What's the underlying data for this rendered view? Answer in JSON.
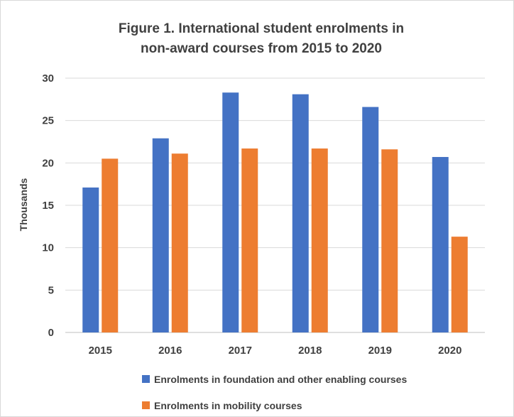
{
  "chart_data": {
    "type": "bar",
    "title_lines": [
      "Figure 1. International student enrolments in",
      "non-award courses from 2015 to 2020"
    ],
    "ylabel": "Thousands",
    "xlabel": "",
    "ylim": [
      0,
      30
    ],
    "yticks": [
      "0",
      "5",
      "10",
      "15",
      "20",
      "25",
      "30"
    ],
    "categories": [
      "2015",
      "2016",
      "2017",
      "2018",
      "2019",
      "2020"
    ],
    "series": [
      {
        "name": "Enrolments in foundation and other enabling courses",
        "color": "#4472c4",
        "values": [
          17.1,
          22.9,
          28.3,
          28.1,
          26.6,
          20.7
        ]
      },
      {
        "name": "Enrolments in mobility courses",
        "color": "#ed7d31",
        "values": [
          20.5,
          21.1,
          21.7,
          21.7,
          21.6,
          11.3
        ]
      }
    ],
    "grid": true,
    "legend_position": "bottom"
  }
}
